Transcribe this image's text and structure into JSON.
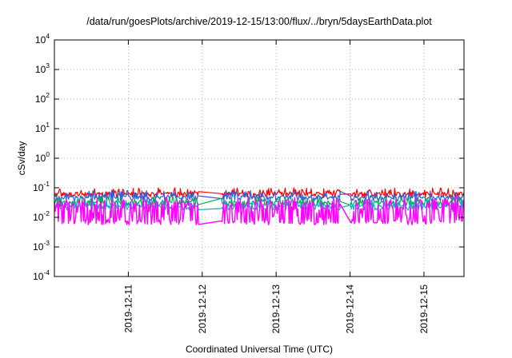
{
  "chart_data": {
    "type": "line",
    "title": "/data/run/goesPlots/archive/2019-12-15/13:00/flux/../bryn/5daysEarthData.plot",
    "xlabel": "Coordinated Universal Time (UTC)",
    "ylabel": "cSv/day",
    "y_scale": "log",
    "ylim": [
      0.0001,
      10000
    ],
    "y_ticks": [
      {
        "base": "10",
        "exp": "-4"
      },
      {
        "base": "10",
        "exp": "-3"
      },
      {
        "base": "10",
        "exp": "-2"
      },
      {
        "base": "10",
        "exp": "-1"
      },
      {
        "base": "10",
        "exp": "0"
      },
      {
        "base": "10",
        "exp": "1"
      },
      {
        "base": "10",
        "exp": "2"
      },
      {
        "base": "10",
        "exp": "3"
      },
      {
        "base": "10",
        "exp": "4"
      }
    ],
    "xlim": [
      "2019-12-10T00:00",
      "2019-12-15T13:00"
    ],
    "x_ticks": [
      "2019-12-11",
      "2019-12-12",
      "2019-12-13",
      "2019-12-14",
      "2019-12-15"
    ],
    "grid": true,
    "legend": "none",
    "gaps": [
      [
        "2019-12-11T23:00",
        "2019-12-12T06:00"
      ],
      [
        "2019-12-13T21:00",
        "2019-12-13T23:59"
      ]
    ],
    "series": [
      {
        "color": "#ff0000",
        "baseline": 0.06,
        "spike_max": 0.1
      },
      {
        "color": "#2a5fe0",
        "baseline": 0.045,
        "spike_max": 0.08
      },
      {
        "color": "#00b050",
        "baseline": 0.03,
        "spike_max": 0.05
      },
      {
        "color": "#00b4c8",
        "baseline": 0.022,
        "spike_max": 0.04
      },
      {
        "color": "#ff00ff",
        "baseline": 0.007,
        "spike_max": 0.05
      }
    ]
  }
}
